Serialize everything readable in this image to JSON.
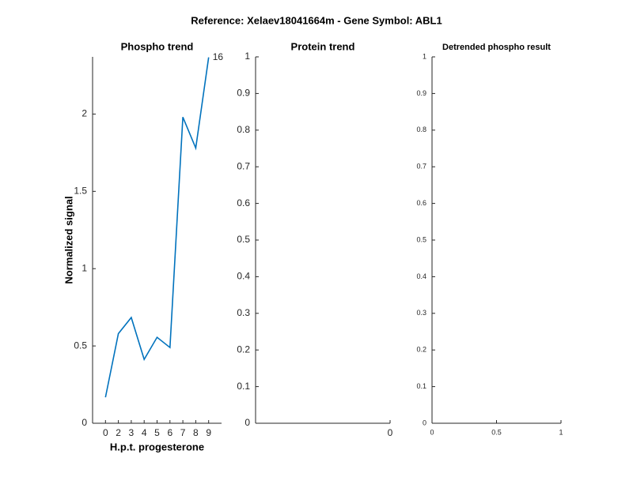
{
  "title": "Reference:  Xelaev18041664m - Gene Symbol:  ABL1",
  "chart_data": [
    {
      "type": "line",
      "title": "Phospho trend",
      "ylabel": "Normalized signal",
      "xlabel": "H.p.t. progesterone",
      "categories": [
        "0",
        "2",
        "3",
        "4",
        "5",
        "6",
        "7",
        "8",
        "9"
      ],
      "values": [
        0.168,
        0.58,
        0.684,
        0.413,
        0.556,
        0.49,
        1.98,
        1.78,
        2.367
      ],
      "color": "#0072bd",
      "annotation": "16",
      "ylim": [
        0,
        2.37
      ],
      "yticks": [
        0,
        0.5,
        1,
        1.5,
        2
      ]
    },
    {
      "type": "empty",
      "title": "Protein trend",
      "ylim": [
        0,
        1
      ],
      "yticks": [
        0,
        0.1,
        0.2,
        0.3,
        0.4,
        0.5,
        0.6,
        0.7,
        0.8,
        0.9,
        1
      ],
      "xticks": [
        0
      ]
    },
    {
      "type": "empty",
      "title": "Detrended phospho result",
      "ylim": [
        0,
        1
      ],
      "yticks": [
        0,
        0.1,
        0.2,
        0.3,
        0.4,
        0.5,
        0.6,
        0.7,
        0.8,
        0.9,
        1
      ],
      "xlim": [
        0,
        1
      ],
      "xticks": [
        0,
        0.5,
        1
      ]
    }
  ]
}
